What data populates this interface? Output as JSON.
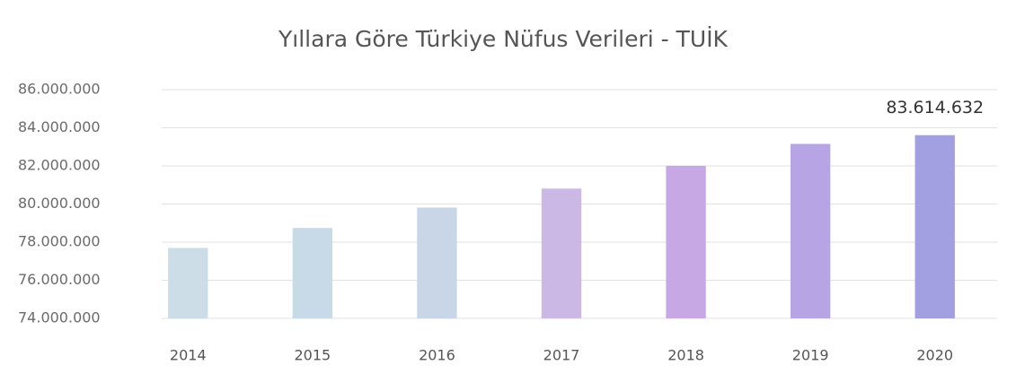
{
  "chart_data": {
    "type": "bar",
    "title": "Yıllara Göre Türkiye Nüfus Verileri - TUİK",
    "categories": [
      "2014",
      "2015",
      "2016",
      "2017",
      "2018",
      "2019",
      "2020"
    ],
    "values": [
      77695904,
      78741053,
      79814871,
      80810525,
      82003882,
      83154997,
      83614632
    ],
    "value_labels": [
      null,
      null,
      null,
      null,
      null,
      null,
      "83.614.632"
    ],
    "colors": [
      "#cddde8",
      "#c8d9e8",
      "#c9d6e8",
      "#cbb8e5",
      "#c8a8e4",
      "#b7a4e5",
      "#a3a0e2"
    ],
    "ylim": [
      74000000,
      86000000
    ],
    "yticks": [
      {
        "value": 74000000,
        "label": "74.000.000"
      },
      {
        "value": 76000000,
        "label": "76.000.000"
      },
      {
        "value": 78000000,
        "label": "78.000.000"
      },
      {
        "value": 80000000,
        "label": "80.000.000"
      },
      {
        "value": 82000000,
        "label": "82.000.000"
      },
      {
        "value": 84000000,
        "label": "84.000.000"
      },
      {
        "value": 86000000,
        "label": "86.000.000"
      }
    ],
    "grid": true
  }
}
